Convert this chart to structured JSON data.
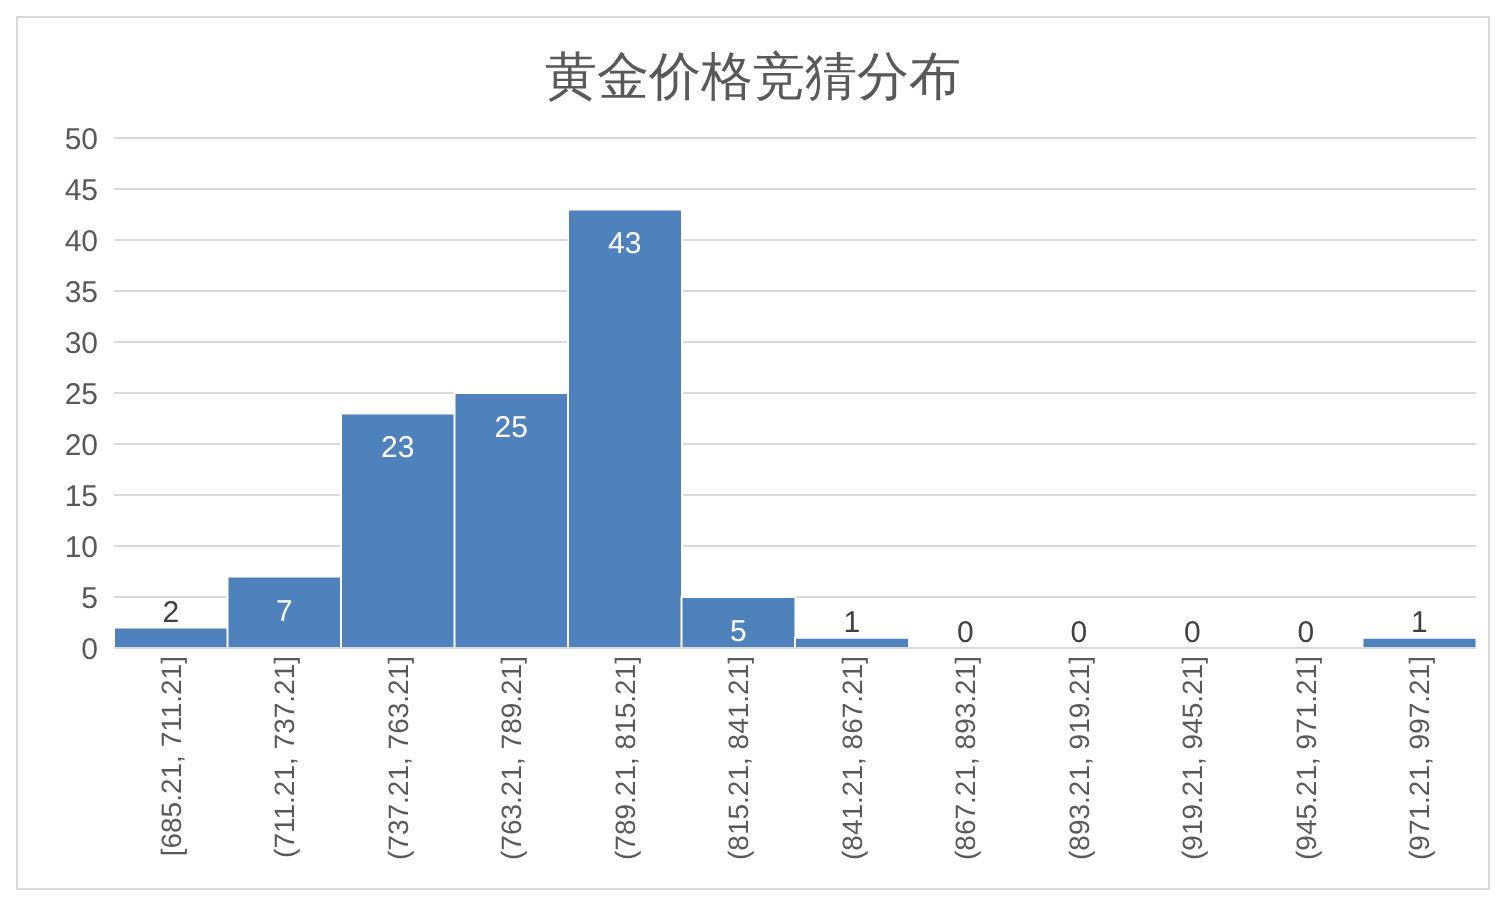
{
  "chart_data": {
    "type": "bar",
    "title": "黄金价格竞猜分布",
    "categories": [
      "[685.21, 711.21]",
      "(711.21, 737.21]",
      "(737.21, 763.21]",
      "(763.21, 789.21]",
      "(789.21, 815.21]",
      "(815.21, 841.21]",
      "(841.21, 867.21]",
      "(867.21, 893.21]",
      "(893.21, 919.21]",
      "(919.21, 945.21]",
      "(945.21, 971.21]",
      "(971.21, 997.21]"
    ],
    "values": [
      2,
      7,
      23,
      25,
      43,
      5,
      1,
      0,
      0,
      0,
      0,
      1
    ],
    "color": "#4f81bd",
    "ylim": [
      0,
      50
    ],
    "yticks": [
      0,
      5,
      10,
      15,
      20,
      25,
      30,
      35,
      40,
      45,
      50
    ],
    "grid": "y",
    "data_labels": true
  }
}
